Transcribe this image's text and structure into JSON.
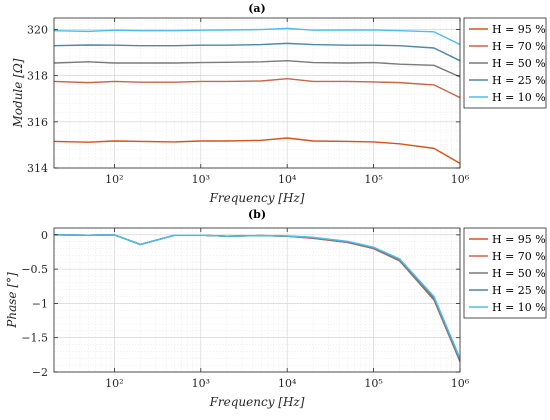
{
  "chart_data": [
    {
      "type": "line",
      "title": "(a)",
      "xlabel": "Frequency [Hz]",
      "ylabel": "Module [Ω]",
      "xscale": "log",
      "xlim": [
        20,
        1000000
      ],
      "ylim": [
        314,
        320.5
      ],
      "xticks": [
        100,
        1000,
        10000,
        100000,
        1000000
      ],
      "xticklabels": [
        "10²",
        "10³",
        "10⁴",
        "10⁵",
        "10⁶"
      ],
      "yticks": [
        314,
        316,
        318,
        320
      ],
      "yticklabels": [
        "314",
        "316",
        "318",
        "320"
      ],
      "grid": true,
      "legend": "outside-right",
      "x": [
        20,
        50,
        100,
        200,
        500,
        1000,
        2000,
        5000,
        10000,
        20000,
        50000,
        100000,
        200000,
        500000,
        1000000
      ],
      "series": [
        {
          "name": "H = 95 %",
          "color": "#d95319",
          "values": [
            315.15,
            315.12,
            315.17,
            315.15,
            315.13,
            315.17,
            315.17,
            315.2,
            315.3,
            315.17,
            315.15,
            315.13,
            315.05,
            314.85,
            314.2
          ]
        },
        {
          "name": "H = 70 %",
          "color": "#c8664a",
          "values": [
            317.75,
            317.7,
            317.75,
            317.72,
            317.72,
            317.75,
            317.75,
            317.77,
            317.87,
            317.75,
            317.75,
            317.73,
            317.7,
            317.6,
            317.05
          ]
        },
        {
          "name": "H = 50 %",
          "color": "#7a7a7a",
          "values": [
            318.55,
            318.6,
            318.55,
            318.55,
            318.55,
            318.57,
            318.58,
            318.6,
            318.65,
            318.57,
            318.55,
            318.57,
            318.5,
            318.45,
            317.95
          ]
        },
        {
          "name": "H = 25 %",
          "color": "#4f86a8",
          "values": [
            319.3,
            319.33,
            319.32,
            319.3,
            319.3,
            319.32,
            319.32,
            319.35,
            319.4,
            319.35,
            319.32,
            319.32,
            319.3,
            319.2,
            318.65
          ]
        },
        {
          "name": "H = 10 %",
          "color": "#4dbeee",
          "values": [
            319.95,
            319.92,
            319.97,
            319.95,
            319.95,
            319.97,
            319.98,
            320.0,
            320.05,
            319.97,
            319.98,
            319.98,
            319.95,
            319.9,
            319.35
          ]
        }
      ]
    },
    {
      "type": "line",
      "title": "(b)",
      "xlabel": "Frequency [Hz]",
      "ylabel": "Phase [°]",
      "xscale": "log",
      "xlim": [
        20,
        1000000
      ],
      "ylim": [
        -2,
        0.1
      ],
      "xticks": [
        100,
        1000,
        10000,
        100000,
        1000000
      ],
      "xticklabels": [
        "10²",
        "10³",
        "10⁴",
        "10⁵",
        "10⁶"
      ],
      "yticks": [
        -2,
        -1.5,
        -1,
        -0.5,
        0
      ],
      "yticklabels": [
        "−2",
        "−1.5",
        "−1",
        "−0.5",
        "0"
      ],
      "grid": true,
      "legend": "outside-right",
      "x": [
        20,
        50,
        100,
        200,
        500,
        1000,
        2000,
        5000,
        10000,
        20000,
        50000,
        100000,
        200000,
        500000,
        1000000
      ],
      "series": [
        {
          "name": "H = 95 %",
          "color": "#d95319",
          "values": [
            0,
            -0.005,
            0,
            -0.14,
            -0.005,
            -0.005,
            -0.02,
            -0.01,
            -0.02,
            -0.05,
            -0.11,
            -0.2,
            -0.38,
            -0.95,
            -1.85
          ]
        },
        {
          "name": "H = 70 %",
          "color": "#c8664a",
          "values": [
            0,
            -0.005,
            0,
            -0.14,
            -0.005,
            -0.005,
            -0.02,
            -0.01,
            -0.02,
            -0.05,
            -0.11,
            -0.2,
            -0.38,
            -0.94,
            -1.84
          ]
        },
        {
          "name": "H = 50 %",
          "color": "#7a7a7a",
          "values": [
            0,
            -0.005,
            0,
            -0.14,
            -0.005,
            -0.005,
            -0.02,
            -0.01,
            -0.02,
            -0.045,
            -0.105,
            -0.19,
            -0.37,
            -0.93,
            -1.83
          ]
        },
        {
          "name": "H = 25 %",
          "color": "#4f86a8",
          "values": [
            0,
            -0.005,
            0,
            -0.14,
            -0.005,
            -0.005,
            -0.02,
            -0.01,
            -0.02,
            -0.04,
            -0.1,
            -0.185,
            -0.36,
            -0.92,
            -1.82
          ]
        },
        {
          "name": "H = 10 %",
          "color": "#4dbeee",
          "values": [
            0,
            -0.005,
            0,
            -0.14,
            -0.005,
            -0.005,
            -0.02,
            -0.01,
            -0.015,
            -0.035,
            -0.095,
            -0.18,
            -0.35,
            -0.9,
            -1.8
          ]
        }
      ]
    }
  ]
}
